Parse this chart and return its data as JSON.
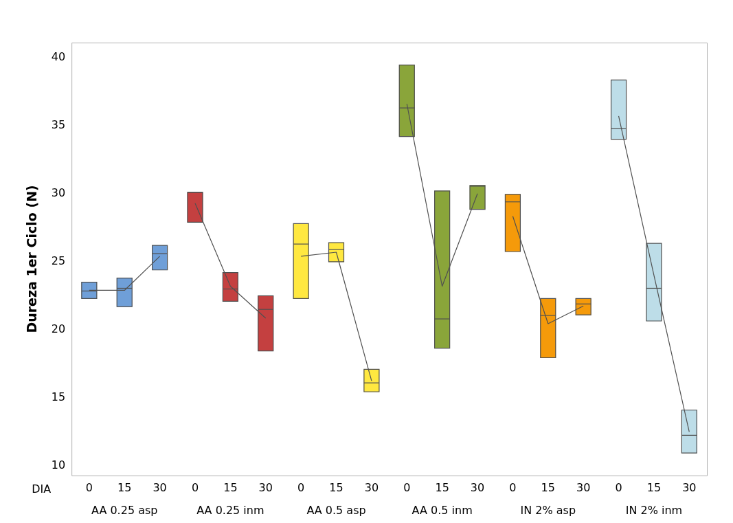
{
  "chart_data": {
    "type": "box",
    "xlabel": "DIA",
    "ylabel": "Dureza 1er Ciclo (N)",
    "categories": [
      "0",
      "15",
      "30",
      "0",
      "15",
      "30",
      "0",
      "15",
      "30",
      "0",
      "15",
      "30",
      "0",
      "15",
      "30",
      "0",
      "15",
      "30"
    ],
    "annotations": [
      "AA 0.25 asp",
      "AA 0.25 inm",
      "AA 0.5 asp",
      "AA 0.5 inm",
      "IN 2% asp",
      "IN 2% inm"
    ],
    "colors": [
      "#6f9fd8",
      "#6f9fd8",
      "#6f9fd8",
      "#c44040",
      "#c44040",
      "#c44040",
      "#ffe840",
      "#ffe840",
      "#ffe840",
      "#8aa53a",
      "#8aa53a",
      "#8aa53a",
      "#f59a0a",
      "#f59a0a",
      "#f59a0a",
      "#bddde8",
      "#bddde8",
      "#bddde8"
    ],
    "boxes": [
      {
        "low": 22.3,
        "q1": 22.3,
        "median": 22.85,
        "q3": 23.5,
        "high": 23.5
      },
      {
        "low": 21.7,
        "q1": 21.7,
        "median": 23.05,
        "q3": 23.8,
        "high": 23.8
      },
      {
        "low": 24.4,
        "q1": 24.4,
        "median": 25.6,
        "q3": 26.2,
        "high": 26.2
      },
      {
        "low": 27.9,
        "q1": 27.9,
        "median": 30.1,
        "q3": 30.1,
        "high": 30.1
      },
      {
        "low": 22.1,
        "q1": 22.1,
        "median": 23.0,
        "q3": 24.2,
        "high": 24.2
      },
      {
        "low": 18.45,
        "q1": 18.45,
        "median": 21.5,
        "q3": 22.5,
        "high": 22.5
      },
      {
        "low": 22.3,
        "q1": 22.3,
        "median": 26.3,
        "q3": 27.8,
        "high": 27.8
      },
      {
        "low": 25.0,
        "q1": 25.0,
        "median": 25.9,
        "q3": 26.4,
        "high": 26.4
      },
      {
        "low": 15.45,
        "q1": 15.45,
        "median": 16.1,
        "q3": 17.1,
        "high": 17.1
      },
      {
        "low": 34.2,
        "q1": 34.2,
        "median": 36.3,
        "q3": 39.45,
        "high": 39.45
      },
      {
        "low": 18.65,
        "q1": 18.65,
        "median": 20.8,
        "q3": 30.2,
        "high": 30.2
      },
      {
        "low": 28.85,
        "q1": 28.85,
        "median": 30.55,
        "q3": 30.6,
        "high": 30.6
      },
      {
        "low": 25.75,
        "q1": 25.75,
        "median": 29.4,
        "q3": 29.95,
        "high": 29.95
      },
      {
        "low": 17.95,
        "q1": 17.95,
        "median": 21.05,
        "q3": 22.3,
        "high": 22.3
      },
      {
        "low": 21.1,
        "q1": 21.1,
        "median": 21.9,
        "q3": 22.3,
        "high": 22.3
      },
      {
        "low": 34.0,
        "q1": 34.0,
        "median": 34.8,
        "q3": 38.35,
        "high": 38.35
      },
      {
        "low": 20.65,
        "q1": 20.65,
        "median": 23.05,
        "q3": 26.35,
        "high": 26.35
      },
      {
        "low": 10.95,
        "q1": 10.95,
        "median": 12.25,
        "q3": 14.1,
        "high": 14.1
      }
    ],
    "series": [
      {
        "type": "line",
        "color": "#505050",
        "values": [
          22.9,
          22.9,
          25.4,
          null,
          null,
          null,
          null,
          null,
          null,
          null,
          null,
          null,
          null,
          null,
          null,
          null,
          null,
          null
        ]
      },
      {
        "type": "line",
        "color": "#505050",
        "values": [
          null,
          null,
          null,
          29.3,
          23.2,
          20.85,
          null,
          null,
          null,
          null,
          null,
          null,
          null,
          null,
          null,
          null,
          null,
          null
        ]
      },
      {
        "type": "line",
        "color": "#505050",
        "values": [
          null,
          null,
          null,
          null,
          null,
          null,
          25.4,
          25.7,
          16.25,
          null,
          null,
          null,
          null,
          null,
          null,
          null,
          null,
          null
        ]
      },
      {
        "type": "line",
        "color": "#505050",
        "values": [
          null,
          null,
          null,
          null,
          null,
          null,
          null,
          null,
          null,
          36.6,
          23.2,
          30.0,
          null,
          null,
          null,
          null,
          null,
          null
        ]
      },
      {
        "type": "line",
        "color": "#505050",
        "values": [
          null,
          null,
          null,
          null,
          null,
          null,
          null,
          null,
          null,
          null,
          null,
          null,
          28.35,
          20.45,
          21.75,
          null,
          null,
          null
        ]
      },
      {
        "type": "line",
        "color": "#505050",
        "values": [
          null,
          null,
          null,
          null,
          null,
          null,
          null,
          null,
          null,
          null,
          null,
          null,
          null,
          null,
          null,
          35.7,
          24.0,
          12.5
        ]
      }
    ],
    "line_style": "solid",
    "ylim": [
      9.3,
      41.1
    ],
    "yticks": [
      10,
      15,
      20,
      25,
      30,
      35,
      40
    ],
    "grid": false,
    "legend": false
  }
}
